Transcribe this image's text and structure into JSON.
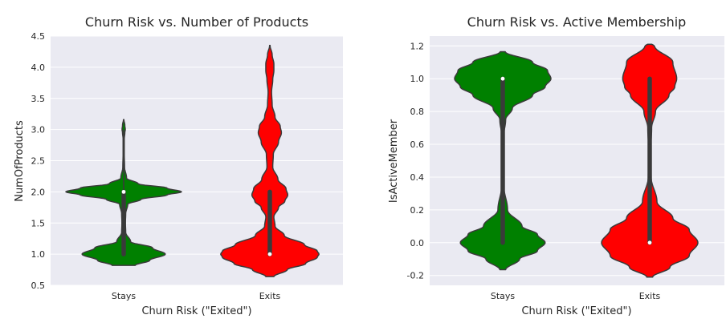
{
  "chart_data": [
    {
      "type": "violin",
      "title": "Churn Risk vs. Number of Products",
      "xlabel": "Churn Risk (\"Exited\")",
      "ylabel": "NumOfProducts",
      "categories": [
        "Stays",
        "Exits"
      ],
      "ylim": [
        0.5,
        4.5
      ],
      "yticks": [
        "0.5",
        "1.0",
        "1.5",
        "2.0",
        "2.5",
        "3.0",
        "3.5",
        "4.0",
        "4.5"
      ],
      "grid": true,
      "series": [
        {
          "category": "Stays",
          "color": "#008000",
          "median": 2.0,
          "q1": 1.0,
          "q3": 2.0,
          "whisker_low": 1.0,
          "whisker_high": 3.0,
          "density_profile": [
            [
              0.82,
              0.2
            ],
            [
              0.9,
              0.45
            ],
            [
              1.0,
              0.72
            ],
            [
              1.1,
              0.5
            ],
            [
              1.2,
              0.12
            ],
            [
              1.35,
              0.035
            ],
            [
              1.5,
              0.03
            ],
            [
              1.65,
              0.035
            ],
            [
              1.8,
              0.07
            ],
            [
              1.88,
              0.3
            ],
            [
              1.95,
              0.75
            ],
            [
              2.0,
              1.0
            ],
            [
              2.06,
              0.75
            ],
            [
              2.13,
              0.25
            ],
            [
              2.22,
              0.05
            ],
            [
              2.4,
              0.015
            ],
            [
              2.6,
              0.01
            ],
            [
              2.85,
              0.01
            ],
            [
              2.95,
              0.02
            ],
            [
              3.0,
              0.028
            ],
            [
              3.07,
              0.02
            ],
            [
              3.16,
              0.004
            ]
          ]
        },
        {
          "category": "Exits",
          "color": "#ff0000",
          "median": 1.0,
          "q1": 1.0,
          "q3": 2.0,
          "whisker_low": 1.0,
          "whisker_high": 2.0,
          "density_profile": [
            [
              0.64,
              0.07
            ],
            [
              0.75,
              0.3
            ],
            [
              0.85,
              0.62
            ],
            [
              0.95,
              0.82
            ],
            [
              1.0,
              0.85
            ],
            [
              1.05,
              0.82
            ],
            [
              1.15,
              0.6
            ],
            [
              1.3,
              0.25
            ],
            [
              1.45,
              0.09
            ],
            [
              1.6,
              0.07
            ],
            [
              1.75,
              0.15
            ],
            [
              1.85,
              0.26
            ],
            [
              1.95,
              0.31
            ],
            [
              2.05,
              0.28
            ],
            [
              2.2,
              0.14
            ],
            [
              2.4,
              0.05
            ],
            [
              2.6,
              0.06
            ],
            [
              2.8,
              0.15
            ],
            [
              2.95,
              0.2
            ],
            [
              3.05,
              0.18
            ],
            [
              3.2,
              0.09
            ],
            [
              3.4,
              0.04
            ],
            [
              3.6,
              0.03
            ],
            [
              3.8,
              0.05
            ],
            [
              3.95,
              0.07
            ],
            [
              4.05,
              0.07
            ],
            [
              4.2,
              0.04
            ],
            [
              4.35,
              0.004
            ]
          ]
        }
      ]
    },
    {
      "type": "violin",
      "title": "Churn Risk vs. Active Membership",
      "xlabel": "Churn Risk (\"Exited\")",
      "ylabel": "IsActiveMember",
      "categories": [
        "Stays",
        "Exits"
      ],
      "ylim": [
        -0.26,
        1.26
      ],
      "yticks": [
        "-0.2",
        "0.0",
        "0.2",
        "0.4",
        "0.6",
        "0.8",
        "1.0",
        "1.2"
      ],
      "grid": true,
      "series": [
        {
          "category": "Stays",
          "color": "#008000",
          "median": 1.0,
          "q1": 0.0,
          "q3": 1.0,
          "whisker_low": 0.0,
          "whisker_high": 1.0,
          "density_profile": [
            [
              -0.165,
              0.06
            ],
            [
              -0.1,
              0.35
            ],
            [
              -0.05,
              0.72
            ],
            [
              0.0,
              0.88
            ],
            [
              0.05,
              0.72
            ],
            [
              0.1,
              0.4
            ],
            [
              0.2,
              0.1
            ],
            [
              0.35,
              0.02
            ],
            [
              0.5,
              0.012
            ],
            [
              0.65,
              0.02
            ],
            [
              0.75,
              0.06
            ],
            [
              0.82,
              0.2
            ],
            [
              0.9,
              0.62
            ],
            [
              0.95,
              0.88
            ],
            [
              1.0,
              1.0
            ],
            [
              1.05,
              0.93
            ],
            [
              1.1,
              0.62
            ],
            [
              1.165,
              0.05
            ]
          ]
        },
        {
          "category": "Exits",
          "color": "#ff0000",
          "median": 0.0,
          "q1": 0.0,
          "q3": 1.0,
          "whisker_low": 0.0,
          "whisker_high": 1.0,
          "density_profile": [
            [
              -0.21,
              0.06
            ],
            [
              -0.15,
              0.42
            ],
            [
              -0.08,
              0.82
            ],
            [
              0.0,
              1.0
            ],
            [
              0.08,
              0.82
            ],
            [
              0.15,
              0.48
            ],
            [
              0.25,
              0.15
            ],
            [
              0.4,
              0.03
            ],
            [
              0.55,
              0.018
            ],
            [
              0.7,
              0.04
            ],
            [
              0.8,
              0.12
            ],
            [
              0.9,
              0.4
            ],
            [
              0.95,
              0.52
            ],
            [
              1.0,
              0.56
            ],
            [
              1.1,
              0.48
            ],
            [
              1.2,
              0.1
            ],
            [
              1.21,
              0.04
            ]
          ]
        }
      ]
    }
  ]
}
